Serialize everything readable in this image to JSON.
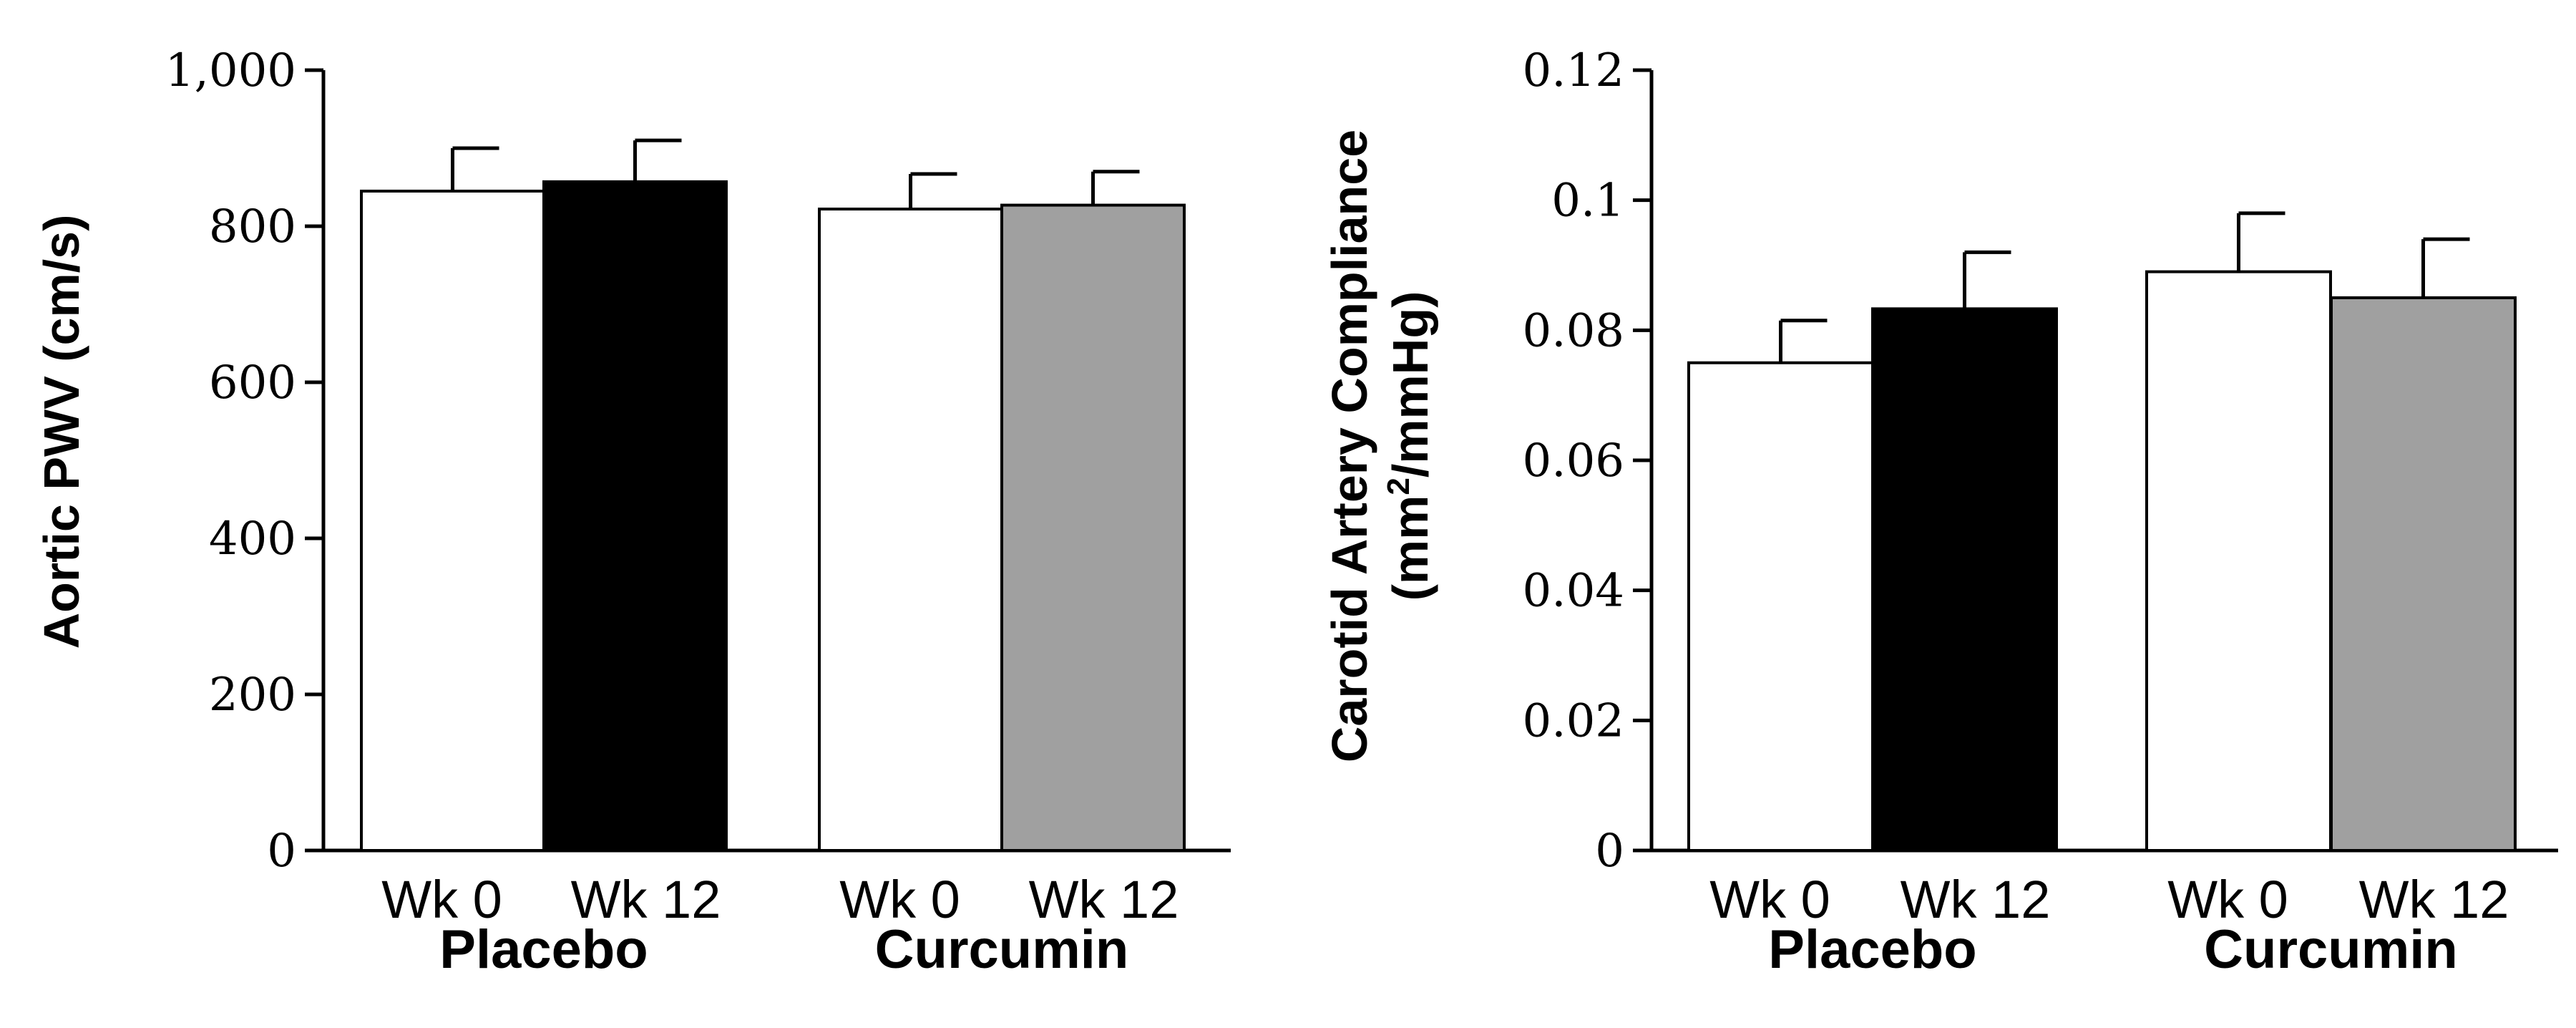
{
  "chart_data": [
    {
      "type": "bar",
      "ylabel": "Aortic PWV (cm/s)",
      "ylim": [
        0,
        1000
      ],
      "yticks": [
        0,
        200,
        400,
        600,
        800,
        1000
      ],
      "ytick_labels": [
        "0",
        "200",
        "400",
        "600",
        "800",
        "1,000"
      ],
      "groups": [
        "Placebo",
        "Curcumin"
      ],
      "bars": [
        {
          "group": "Placebo",
          "label": "Wk 0",
          "value": 845,
          "error": 55,
          "color": "#ffffff"
        },
        {
          "group": "Placebo",
          "label": "Wk 12",
          "value": 857,
          "error": 53,
          "color": "#000000"
        },
        {
          "group": "Curcumin",
          "label": "Wk 0",
          "value": 822,
          "error": 45,
          "color": "#ffffff"
        },
        {
          "group": "Curcumin",
          "label": "Wk 12",
          "value": 827,
          "error": 43,
          "color": "#a0a0a0"
        }
      ]
    },
    {
      "type": "bar",
      "ylabel": "Carotid Artery Compliance",
      "ylabel_line2_pre": "(mm",
      "ylabel_line2_sup": "2",
      "ylabel_line2_post": "/mmHg)",
      "ylim": [
        0,
        0.12
      ],
      "yticks": [
        0,
        0.02,
        0.04,
        0.06,
        0.08,
        0.1,
        0.12
      ],
      "ytick_labels": [
        "0",
        "0.02",
        "0.04",
        "0.06",
        "0.08",
        "0.1",
        "0.12"
      ],
      "groups": [
        "Placebo",
        "Curcumin"
      ],
      "bars": [
        {
          "group": "Placebo",
          "label": "Wk 0",
          "value": 0.075,
          "error": 0.0065,
          "color": "#ffffff"
        },
        {
          "group": "Placebo",
          "label": "Wk 12",
          "value": 0.0833,
          "error": 0.0087,
          "color": "#000000"
        },
        {
          "group": "Curcumin",
          "label": "Wk 0",
          "value": 0.089,
          "error": 0.009,
          "color": "#ffffff"
        },
        {
          "group": "Curcumin",
          "label": "Wk 12",
          "value": 0.085,
          "error": 0.009,
          "color": "#a0a0a0"
        }
      ]
    }
  ]
}
